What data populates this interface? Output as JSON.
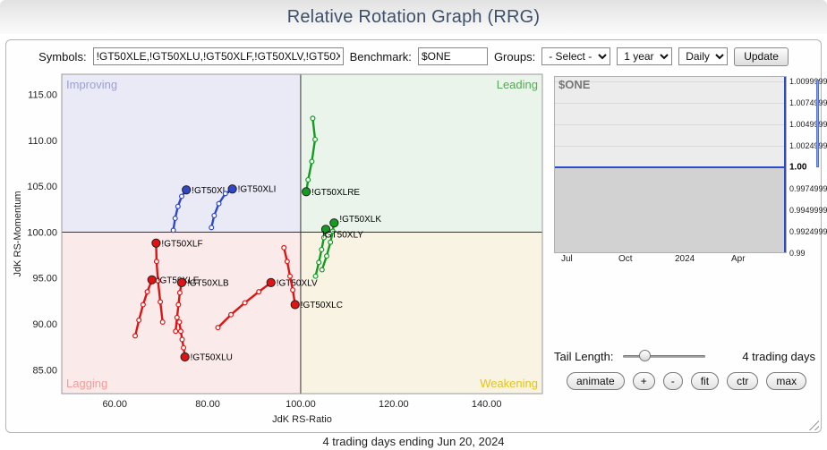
{
  "header": {
    "title": "Relative Rotation Graph (RRG)"
  },
  "controls": {
    "symbols": {
      "label": "Symbols:",
      "value": "!GT50XLE,!GT50XLU,!GT50XLF,!GT50XLV,!GT50X"
    },
    "benchmark": {
      "label": "Benchmark:",
      "value": "$ONE"
    },
    "groups": {
      "label": "Groups:",
      "value": "- Select -"
    },
    "period": {
      "value": "1 year"
    },
    "frequency": {
      "value": "Daily"
    },
    "update": {
      "label": "Update"
    }
  },
  "chart_data": [
    {
      "type": "scatter",
      "title": "Relative Rotation Graph",
      "xlabel": "JdK RS-Ratio",
      "ylabel": "JdK RS-Momentum",
      "xlim": [
        48.6,
        152
      ],
      "ylim": [
        82.4,
        117.2
      ],
      "x_ticks": [
        60,
        80,
        100,
        120,
        140
      ],
      "y_ticks": [
        115,
        110,
        105,
        100,
        95,
        90,
        85
      ],
      "center": [
        100,
        100
      ],
      "grid": false,
      "quadrants": [
        {
          "name": "Improving",
          "color": "#9aa0d6",
          "bg": "#eaeaf6"
        },
        {
          "name": "Leading",
          "color": "#57a857",
          "bg": "#eaf4ea"
        },
        {
          "name": "Lagging",
          "color": "#f49b9b",
          "bg": "#fbeaea"
        },
        {
          "name": "Weakening",
          "color": "#e6c312",
          "bg": "#f8f3e3"
        }
      ],
      "series": [
        {
          "name": "!GT50XLP",
          "color": "#2f46c8",
          "points": [
            [
              72.6,
              100.2
            ],
            [
              73.0,
              101.5
            ],
            [
              73.6,
              102.8
            ],
            [
              74.4,
              103.9
            ],
            [
              75.4,
              104.6
            ]
          ]
        },
        {
          "name": "!GT50XLI",
          "color": "#2f46c8",
          "points": [
            [
              80.8,
              100.5
            ],
            [
              81.4,
              101.8
            ],
            [
              82.4,
              103.1
            ],
            [
              83.8,
              104.2
            ],
            [
              85.3,
              104.7
            ]
          ]
        },
        {
          "name": "!GT50XLRE",
          "color": "#129c22",
          "points": [
            [
              102.6,
              112.4
            ],
            [
              103.1,
              110.1
            ],
            [
              102.4,
              107.7
            ],
            [
              101.6,
              105.7
            ],
            [
              101.2,
              104.4
            ]
          ]
        },
        {
          "name": "!GT50XLK",
          "color": "#129c22",
          "points": [
            [
              104.6,
              95.9
            ],
            [
              105.6,
              97.4
            ],
            [
              106.4,
              98.9
            ],
            [
              106.9,
              100.1
            ],
            [
              107.2,
              101.0
            ]
          ],
          "label_dy": -1
        },
        {
          "name": "!GT50XLY",
          "color": "#129c22",
          "points": [
            [
              103.2,
              95.2
            ],
            [
              103.9,
              96.7
            ],
            [
              104.5,
              98.1
            ],
            [
              105.0,
              99.4
            ],
            [
              105.4,
              100.3
            ]
          ],
          "label_dx": -4,
          "label_dy": 9
        },
        {
          "name": "!GT50XLF",
          "color": "#e01212",
          "points": [
            [
              70.3,
              90.2
            ],
            [
              69.8,
              92.4
            ],
            [
              69.3,
              94.7
            ],
            [
              69.0,
              96.8
            ],
            [
              68.9,
              98.8
            ]
          ]
        },
        {
          "name": "!GT50XLE",
          "color": "#e01212",
          "points": [
            [
              64.4,
              88.7
            ],
            [
              65.2,
              90.4
            ],
            [
              66.1,
              92.1
            ],
            [
              67.0,
              93.5
            ],
            [
              68.0,
              94.8
            ]
          ]
        },
        {
          "name": "!GT50XLB",
          "color": "#e01212",
          "points": [
            [
              73.1,
              89.2
            ],
            [
              73.4,
              90.7
            ],
            [
              73.7,
              92.1
            ],
            [
              74.0,
              93.4
            ],
            [
              74.4,
              94.5
            ]
          ]
        },
        {
          "name": "!GT50XLV",
          "color": "#e01212",
          "points": [
            [
              82.2,
              89.6
            ],
            [
              85.0,
              91.0
            ],
            [
              88.0,
              92.3
            ],
            [
              91.0,
              93.5
            ],
            [
              93.6,
              94.5
            ]
          ]
        },
        {
          "name": "!GT50XLC",
          "color": "#e01212",
          "points": [
            [
              96.4,
              98.3
            ],
            [
              97.1,
              96.8
            ],
            [
              97.7,
              95.2
            ],
            [
              98.3,
              93.7
            ],
            [
              98.8,
              92.1
            ]
          ]
        },
        {
          "name": "!GT50XLU",
          "color": "#e01212",
          "points": [
            [
              73.9,
              90.2
            ],
            [
              74.2,
              89.2
            ],
            [
              74.5,
              88.3
            ],
            [
              74.8,
              87.4
            ],
            [
              75.1,
              86.4
            ]
          ]
        }
      ]
    },
    {
      "type": "area",
      "title": "$ONE",
      "x_labels": [
        "Jul",
        "Oct",
        "2024",
        "Apr"
      ],
      "y_ticks": [
        "1.0099999",
        "1.0074999",
        "1.0049999",
        "1.0024999",
        "1.00",
        "0.9974999",
        "0.9949999",
        "0.9924999",
        "0.99"
      ],
      "current_index": 4,
      "value": 1.0,
      "line_color": "#2b4bc8"
    }
  ],
  "tail_control": {
    "label": "Tail Length:",
    "value_text": "4 trading days"
  },
  "action_buttons": [
    "animate",
    "+",
    "-",
    "fit",
    "ctr",
    "max"
  ],
  "footer": {
    "text": "4 trading days ending Jun 20, 2024"
  }
}
